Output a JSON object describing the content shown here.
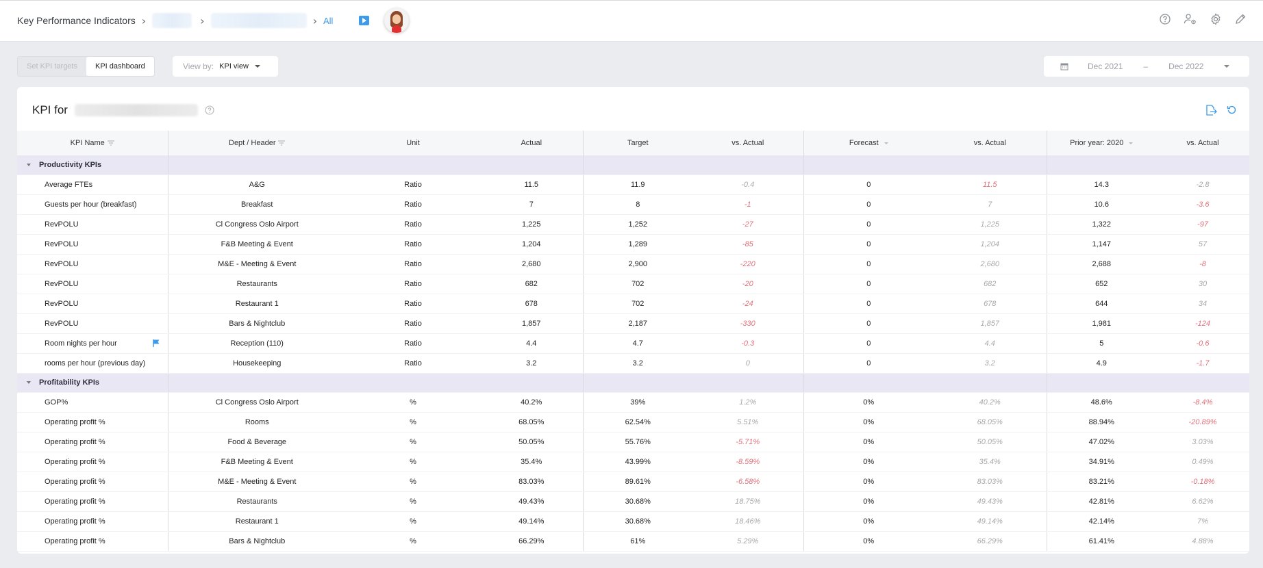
{
  "header": {
    "breadcrumb": [
      {
        "label": "Key Performance Indicators"
      },
      {
        "label": "",
        "redacted": true
      },
      {
        "label": "",
        "redacted": true
      },
      {
        "label": "All"
      }
    ],
    "icons": [
      "video-icon",
      "avatar",
      "help-icon",
      "user-settings-icon",
      "gear-icon",
      "pencil-icon"
    ]
  },
  "toolbar": {
    "tabs": [
      {
        "label": "Set KPI targets",
        "active": false
      },
      {
        "label": "KPI dashboard",
        "active": true
      }
    ],
    "view_by_label": "View by:",
    "view_by_value": "KPI view",
    "date_from": "Dec 2021",
    "date_sep": "–",
    "date_to": "Dec 2022"
  },
  "card": {
    "title": "KPI for",
    "actions": [
      "export-icon",
      "reset-icon"
    ]
  },
  "table": {
    "columns": [
      "KPI Name",
      "Dept / Header",
      "Unit",
      "Actual",
      "Target",
      "vs. Actual",
      "Forecast",
      "vs. Actual",
      "Prior year: 2020",
      "vs. Actual"
    ],
    "groups": [
      {
        "name": "Productivity KPIs",
        "rows": [
          {
            "kpi": "Average FTEs",
            "dept": "A&G",
            "unit": "Ratio",
            "actual": "11.5",
            "target": "11.9",
            "vs_target": "-0.4",
            "vs_target_neg": false,
            "forecast": "0",
            "vs_forecast": "11.5",
            "vs_forecast_neg": true,
            "prior": "14.3",
            "vs_prior": "-2.8",
            "vs_prior_neg": false
          },
          {
            "kpi": "Guests per hour (breakfast)",
            "dept": "Breakfast",
            "unit": "Ratio",
            "actual": "7",
            "target": "8",
            "vs_target": "-1",
            "vs_target_neg": true,
            "forecast": "0",
            "vs_forecast": "7",
            "vs_forecast_neg": false,
            "prior": "10.6",
            "vs_prior": "-3.6",
            "vs_prior_neg": true
          },
          {
            "kpi": "RevPOLU",
            "dept": "Cl Congress Oslo Airport",
            "unit": "Ratio",
            "actual": "1,225",
            "target": "1,252",
            "vs_target": "-27",
            "vs_target_neg": true,
            "forecast": "0",
            "vs_forecast": "1,225",
            "vs_forecast_neg": false,
            "prior": "1,322",
            "vs_prior": "-97",
            "vs_prior_neg": true
          },
          {
            "kpi": "RevPOLU",
            "dept": "F&B Meeting & Event",
            "unit": "Ratio",
            "actual": "1,204",
            "target": "1,289",
            "vs_target": "-85",
            "vs_target_neg": true,
            "forecast": "0",
            "vs_forecast": "1,204",
            "vs_forecast_neg": false,
            "prior": "1,147",
            "vs_prior": "57",
            "vs_prior_neg": false
          },
          {
            "kpi": "RevPOLU",
            "dept": "M&E - Meeting & Event",
            "unit": "Ratio",
            "actual": "2,680",
            "target": "2,900",
            "vs_target": "-220",
            "vs_target_neg": true,
            "forecast": "0",
            "vs_forecast": "2,680",
            "vs_forecast_neg": false,
            "prior": "2,688",
            "vs_prior": "-8",
            "vs_prior_neg": true
          },
          {
            "kpi": "RevPOLU",
            "dept": "Restaurants",
            "unit": "Ratio",
            "actual": "682",
            "target": "702",
            "vs_target": "-20",
            "vs_target_neg": true,
            "forecast": "0",
            "vs_forecast": "682",
            "vs_forecast_neg": false,
            "prior": "652",
            "vs_prior": "30",
            "vs_prior_neg": false
          },
          {
            "kpi": "RevPOLU",
            "dept": "Restaurant 1",
            "unit": "Ratio",
            "actual": "678",
            "target": "702",
            "vs_target": "-24",
            "vs_target_neg": true,
            "forecast": "0",
            "vs_forecast": "678",
            "vs_forecast_neg": false,
            "prior": "644",
            "vs_prior": "34",
            "vs_prior_neg": false
          },
          {
            "kpi": "RevPOLU",
            "dept": "Bars & Nightclub",
            "unit": "Ratio",
            "actual": "1,857",
            "target": "2,187",
            "vs_target": "-330",
            "vs_target_neg": true,
            "forecast": "0",
            "vs_forecast": "1,857",
            "vs_forecast_neg": false,
            "prior": "1,981",
            "vs_prior": "-124",
            "vs_prior_neg": true
          },
          {
            "kpi": "Room nights per hour",
            "flag": true,
            "dept": "Reception (110)",
            "unit": "Ratio",
            "actual": "4.4",
            "target": "4.7",
            "vs_target": "-0.3",
            "vs_target_neg": true,
            "forecast": "0",
            "vs_forecast": "4.4",
            "vs_forecast_neg": false,
            "prior": "5",
            "vs_prior": "-0.6",
            "vs_prior_neg": true
          },
          {
            "kpi": "rooms per hour (previous day)",
            "dept": "Housekeeping",
            "unit": "Ratio",
            "actual": "3.2",
            "target": "3.2",
            "vs_target": "0",
            "vs_target_neg": false,
            "forecast": "0",
            "vs_forecast": "3.2",
            "vs_forecast_neg": false,
            "prior": "4.9",
            "vs_prior": "-1.7",
            "vs_prior_neg": true
          }
        ]
      },
      {
        "name": "Profitability KPIs",
        "rows": [
          {
            "kpi": "GOP%",
            "dept": "Cl Congress Oslo Airport",
            "unit": "%",
            "actual": "40.2%",
            "target": "39%",
            "vs_target": "1.2%",
            "vs_target_neg": false,
            "forecast": "0%",
            "vs_forecast": "40.2%",
            "vs_forecast_neg": false,
            "prior": "48.6%",
            "vs_prior": "-8.4%",
            "vs_prior_neg": true
          },
          {
            "kpi": "Operating profit %",
            "dept": "Rooms",
            "unit": "%",
            "actual": "68.05%",
            "target": "62.54%",
            "vs_target": "5.51%",
            "vs_target_neg": false,
            "forecast": "0%",
            "vs_forecast": "68.05%",
            "vs_forecast_neg": false,
            "prior": "88.94%",
            "vs_prior": "-20.89%",
            "vs_prior_neg": true
          },
          {
            "kpi": "Operating profit %",
            "dept": "Food & Beverage",
            "unit": "%",
            "actual": "50.05%",
            "target": "55.76%",
            "vs_target": "-5.71%",
            "vs_target_neg": true,
            "forecast": "0%",
            "vs_forecast": "50.05%",
            "vs_forecast_neg": false,
            "prior": "47.02%",
            "vs_prior": "3.03%",
            "vs_prior_neg": false
          },
          {
            "kpi": "Operating profit %",
            "dept": "F&B Meeting & Event",
            "unit": "%",
            "actual": "35.4%",
            "target": "43.99%",
            "vs_target": "-8.59%",
            "vs_target_neg": true,
            "forecast": "0%",
            "vs_forecast": "35.4%",
            "vs_forecast_neg": false,
            "prior": "34.91%",
            "vs_prior": "0.49%",
            "vs_prior_neg": false
          },
          {
            "kpi": "Operating profit %",
            "dept": "M&E - Meeting & Event",
            "unit": "%",
            "actual": "83.03%",
            "target": "89.61%",
            "vs_target": "-6.58%",
            "vs_target_neg": true,
            "forecast": "0%",
            "vs_forecast": "83.03%",
            "vs_forecast_neg": false,
            "prior": "83.21%",
            "vs_prior": "-0.18%",
            "vs_prior_neg": true
          },
          {
            "kpi": "Operating profit %",
            "dept": "Restaurants",
            "unit": "%",
            "actual": "49.43%",
            "target": "30.68%",
            "vs_target": "18.75%",
            "vs_target_neg": false,
            "forecast": "0%",
            "vs_forecast": "49.43%",
            "vs_forecast_neg": false,
            "prior": "42.81%",
            "vs_prior": "6.62%",
            "vs_prior_neg": false
          },
          {
            "kpi": "Operating profit %",
            "dept": "Restaurant 1",
            "unit": "%",
            "actual": "49.14%",
            "target": "30.68%",
            "vs_target": "18.46%",
            "vs_target_neg": false,
            "forecast": "0%",
            "vs_forecast": "49.14%",
            "vs_forecast_neg": false,
            "prior": "42.14%",
            "vs_prior": "7%",
            "vs_prior_neg": false
          },
          {
            "kpi": "Operating profit %",
            "dept": "Bars & Nightclub",
            "unit": "%",
            "actual": "66.29%",
            "target": "61%",
            "vs_target": "5.29%",
            "vs_target_neg": false,
            "forecast": "0%",
            "vs_forecast": "66.29%",
            "vs_forecast_neg": false,
            "prior": "61.41%",
            "vs_prior": "4.88%",
            "vs_prior_neg": false
          }
        ]
      }
    ]
  },
  "colors": {
    "accent": "#3d9be9",
    "negative": "#e0707a",
    "neutral_variance": "#a8a8ac",
    "group_row_bg": "#eae7f4",
    "page_bg": "#ebecf0"
  }
}
